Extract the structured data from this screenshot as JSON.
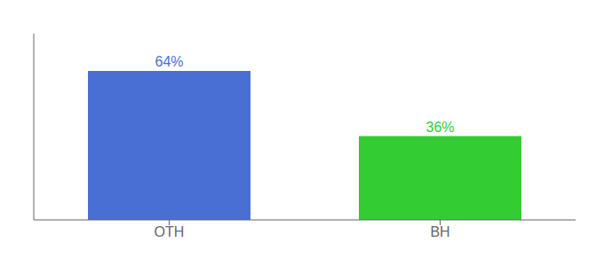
{
  "chart_data": {
    "type": "bar",
    "categories": [
      "OTH",
      "BH"
    ],
    "values": [
      64,
      36
    ],
    "value_labels": [
      "64%",
      "36%"
    ],
    "data_labels": true,
    "colors": [
      "#4a6fd4",
      "#33cc33"
    ],
    "ylim": [
      0,
      80
    ],
    "tick_labels": "x",
    "grid": false
  }
}
